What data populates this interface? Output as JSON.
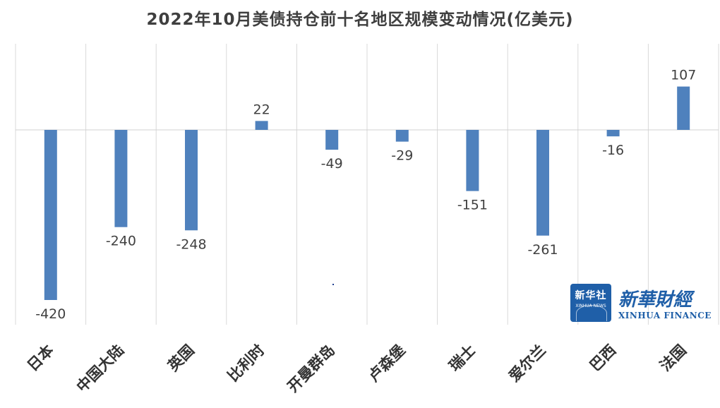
{
  "chart_data": {
    "type": "bar",
    "title": "2022年10月美债持仓前十名地区规模变动情况(亿美元)",
    "categories": [
      "日本",
      "中国大陆",
      "英国",
      "比利时",
      "开曼群岛",
      "卢森堡",
      "瑞士",
      "爱尔兰",
      "巴西",
      "法国"
    ],
    "values": [
      -420,
      -240,
      -248,
      22,
      -49,
      -29,
      -151,
      -261,
      -16,
      107
    ],
    "data_labels": [
      "-420",
      "-240",
      "-248",
      "22",
      "-49",
      "-29",
      "-151",
      "-261",
      "-16",
      "107"
    ],
    "xlabel": "",
    "ylabel": "",
    "ylim": [
      -500,
      150
    ],
    "grid": "vertical",
    "legend": "none",
    "bar_color": "#4f81bd"
  },
  "watermark": {
    "box_cn": "新华社",
    "box_en": "XINHUA NEWS",
    "script_cn": "新華財經",
    "en": "XINHUA FINANCE",
    "color": "#1f5fa8"
  }
}
